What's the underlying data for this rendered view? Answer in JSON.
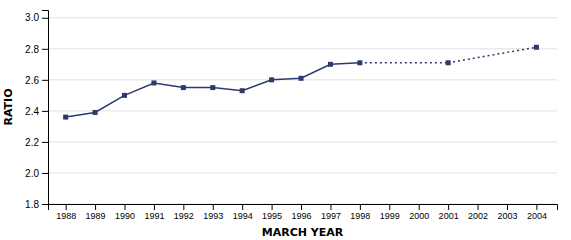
{
  "chart_data": {
    "type": "line",
    "x_label": "MARCH YEAR",
    "y_label": "RATIO",
    "series": [
      {
        "x": [
          1988,
          1989,
          1990,
          1991,
          1992,
          1993,
          1994,
          1995,
          1996,
          1997,
          1998
        ],
        "values": [
          2.36,
          2.39,
          2.5,
          2.58,
          2.55,
          2.55,
          2.53,
          2.6,
          2.61,
          2.7,
          2.71
        ],
        "color": "#2e3a6e",
        "line_style": "solid",
        "marker": "square"
      },
      {
        "x": [
          1998,
          1999,
          2000,
          2001
        ],
        "values": [
          2.71,
          2.71,
          2.71,
          2.71
        ],
        "color": "#2e3a6e",
        "line_style": "dotted"
      },
      {
        "x": [
          2001,
          2004
        ],
        "values": [
          2.71,
          2.81
        ],
        "color": "#2e3a6e",
        "line_style": "dotted",
        "marker": "square"
      }
    ],
    "xlim": [
      1987.4,
      2004.7
    ],
    "xticks": [
      1988,
      1989,
      1990,
      1991,
      1992,
      1993,
      1994,
      1995,
      1996,
      1997,
      1998,
      1999,
      2000,
      2001,
      2002,
      2003,
      2004
    ],
    "ylim": [
      1.8,
      3.05
    ],
    "yticks": [
      1.8,
      {
        "value": 2.0,
        "label": "2.0"
      },
      2.2,
      2.4,
      2.6,
      2.8,
      {
        "value": 3.0,
        "label": "3.0"
      }
    ],
    "grid": true
  }
}
